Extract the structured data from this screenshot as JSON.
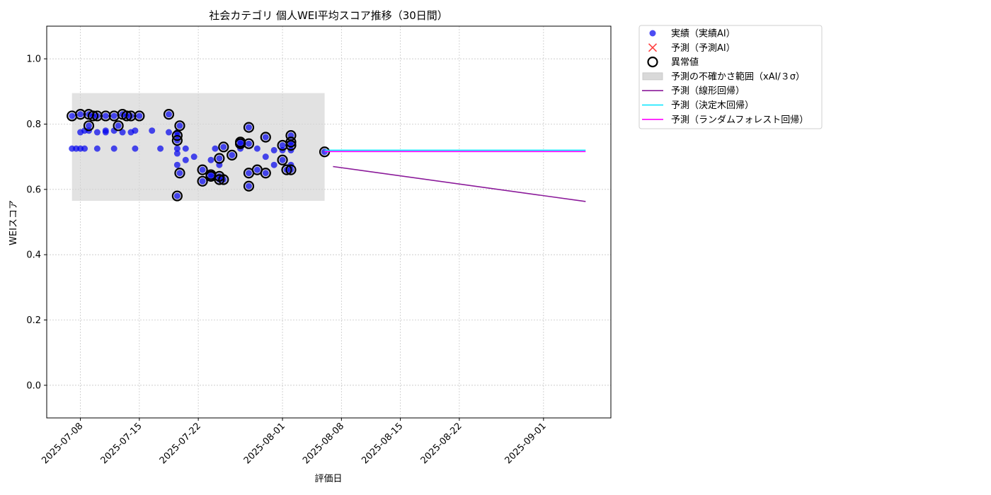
{
  "chart_data": {
    "type": "scatter",
    "title": "社会カテゴリ 個人WEI平均スコア推移（30日間）",
    "xlabel": "評価日",
    "ylabel": "WEIスコア",
    "ylim": [
      -0.1,
      1.1
    ],
    "xlim": [
      "2025-07-04",
      "2025-09-09"
    ],
    "y_ticks": [
      "0.0",
      "0.2",
      "0.4",
      "0.6",
      "0.8",
      "1.0"
    ],
    "x_ticks": [
      "2025-07-08",
      "2025-07-15",
      "2025-07-22",
      "2025-08-01",
      "2025-08-08",
      "2025-08-15",
      "2025-08-22",
      "2025-09-01"
    ],
    "grid": true,
    "legend_placement": "outside upper right",
    "legend": [
      {
        "label": "実績（実績AI）",
        "kind": "marker-dot",
        "color": "#0000ee"
      },
      {
        "label": "予測（予測AI）",
        "kind": "marker-x",
        "color": "#ff0000"
      },
      {
        "label": "異常値",
        "kind": "marker-ring",
        "color": "#000000"
      },
      {
        "label": "予測の不確かさ範囲（xAI/３σ）",
        "kind": "band",
        "color": "#d9d9d9"
      },
      {
        "label": "予測（線形回帰）",
        "kind": "line",
        "color": "#8b1a9a"
      },
      {
        "label": "予測（決定木回帰）",
        "kind": "line",
        "color": "#00e5ff"
      },
      {
        "label": "予測（ランダムフォレスト回帰）",
        "kind": "line",
        "color": "#ff00ff"
      }
    ],
    "uncertainty_band": {
      "x": [
        "2025-07-07",
        "2025-08-06"
      ],
      "y": [
        0.565,
        0.895
      ]
    },
    "actual_points": [
      {
        "x": "2025-07-07",
        "y": 0.825,
        "anomaly": true
      },
      {
        "x": "2025-07-07",
        "y": 0.725
      },
      {
        "x": "2025-07-07.5",
        "y": 0.725
      },
      {
        "x": "2025-07-08",
        "y": 0.83,
        "anomaly": true
      },
      {
        "x": "2025-07-08",
        "y": 0.725
      },
      {
        "x": "2025-07-08",
        "y": 0.775
      },
      {
        "x": "2025-07-08.5",
        "y": 0.725
      },
      {
        "x": "2025-07-08.5",
        "y": 0.78
      },
      {
        "x": "2025-07-09",
        "y": 0.83,
        "anomaly": true
      },
      {
        "x": "2025-07-09",
        "y": 0.78
      },
      {
        "x": "2025-07-09",
        "y": 0.795,
        "anomaly": true
      },
      {
        "x": "2025-07-09.5",
        "y": 0.825,
        "anomaly": true
      },
      {
        "x": "2025-07-10",
        "y": 0.825,
        "anomaly": true
      },
      {
        "x": "2025-07-10",
        "y": 0.775
      },
      {
        "x": "2025-07-10",
        "y": 0.725
      },
      {
        "x": "2025-07-11",
        "y": 0.775
      },
      {
        "x": "2025-07-11",
        "y": 0.78
      },
      {
        "x": "2025-07-11",
        "y": 0.825,
        "anomaly": true
      },
      {
        "x": "2025-07-12",
        "y": 0.78
      },
      {
        "x": "2025-07-12",
        "y": 0.725
      },
      {
        "x": "2025-07-12",
        "y": 0.825,
        "anomaly": true
      },
      {
        "x": "2025-07-12.5",
        "y": 0.795,
        "anomaly": true
      },
      {
        "x": "2025-07-13",
        "y": 0.83,
        "anomaly": true
      },
      {
        "x": "2025-07-13",
        "y": 0.775
      },
      {
        "x": "2025-07-13.5",
        "y": 0.825,
        "anomaly": true
      },
      {
        "x": "2025-07-14",
        "y": 0.775
      },
      {
        "x": "2025-07-14",
        "y": 0.825,
        "anomaly": true
      },
      {
        "x": "2025-07-14.5",
        "y": 0.78
      },
      {
        "x": "2025-07-14.5",
        "y": 0.725
      },
      {
        "x": "2025-07-15",
        "y": 0.825,
        "anomaly": true
      },
      {
        "x": "2025-07-16.5",
        "y": 0.78
      },
      {
        "x": "2025-07-17.5",
        "y": 0.725
      },
      {
        "x": "2025-07-18.5",
        "y": 0.83,
        "anomaly": true
      },
      {
        "x": "2025-07-18.5",
        "y": 0.775
      },
      {
        "x": "2025-07-19.5",
        "y": 0.775
      },
      {
        "x": "2025-07-19.5",
        "y": 0.765,
        "anomaly": true
      },
      {
        "x": "2025-07-19.5",
        "y": 0.75,
        "anomaly": true
      },
      {
        "x": "2025-07-19.5",
        "y": 0.725
      },
      {
        "x": "2025-07-19.5",
        "y": 0.71
      },
      {
        "x": "2025-07-19.5",
        "y": 0.675
      },
      {
        "x": "2025-07-19.5",
        "y": 0.58,
        "anomaly": true
      },
      {
        "x": "2025-07-19.8",
        "y": 0.795,
        "anomaly": true
      },
      {
        "x": "2025-07-19.8",
        "y": 0.65,
        "anomaly": true
      },
      {
        "x": "2025-07-20.5",
        "y": 0.725
      },
      {
        "x": "2025-07-20.5",
        "y": 0.69
      },
      {
        "x": "2025-07-21.5",
        "y": 0.7
      },
      {
        "x": "2025-07-22.5",
        "y": 0.66,
        "anomaly": true
      },
      {
        "x": "2025-07-22.5",
        "y": 0.625,
        "anomaly": true
      },
      {
        "x": "2025-07-23.5",
        "y": 0.69
      },
      {
        "x": "2025-07-23.5",
        "y": 0.645,
        "anomaly": true
      },
      {
        "x": "2025-07-23.5",
        "y": 0.64,
        "anomaly": true
      },
      {
        "x": "2025-07-24",
        "y": 0.725
      },
      {
        "x": "2025-07-24.5",
        "y": 0.695,
        "anomaly": true
      },
      {
        "x": "2025-07-24.5",
        "y": 0.675
      },
      {
        "x": "2025-07-24.5",
        "y": 0.64,
        "anomaly": true
      },
      {
        "x": "2025-07-24.5",
        "y": 0.63,
        "anomaly": true
      },
      {
        "x": "2025-07-25",
        "y": 0.73,
        "anomaly": true
      },
      {
        "x": "2025-07-25",
        "y": 0.63,
        "anomaly": true
      },
      {
        "x": "2025-07-26",
        "y": 0.705,
        "anomaly": true
      },
      {
        "x": "2025-07-27",
        "y": 0.745,
        "anomaly": true
      },
      {
        "x": "2025-07-27",
        "y": 0.725
      },
      {
        "x": "2025-07-27",
        "y": 0.74,
        "anomaly": true
      },
      {
        "x": "2025-07-28",
        "y": 0.79,
        "anomaly": true
      },
      {
        "x": "2025-07-28",
        "y": 0.74,
        "anomaly": true
      },
      {
        "x": "2025-07-28",
        "y": 0.65,
        "anomaly": true
      },
      {
        "x": "2025-07-28",
        "y": 0.61,
        "anomaly": true
      },
      {
        "x": "2025-07-29",
        "y": 0.725
      },
      {
        "x": "2025-07-29",
        "y": 0.66,
        "anomaly": true
      },
      {
        "x": "2025-07-30",
        "y": 0.76,
        "anomaly": true
      },
      {
        "x": "2025-07-30",
        "y": 0.7
      },
      {
        "x": "2025-07-30",
        "y": 0.65,
        "anomaly": true
      },
      {
        "x": "2025-07-31",
        "y": 0.72
      },
      {
        "x": "2025-07-31",
        "y": 0.675
      },
      {
        "x": "2025-08-01",
        "y": 0.735,
        "anomaly": true
      },
      {
        "x": "2025-08-01",
        "y": 0.72
      },
      {
        "x": "2025-08-01",
        "y": 0.69,
        "anomaly": true
      },
      {
        "x": "2025-08-01.5",
        "y": 0.66,
        "anomaly": true
      },
      {
        "x": "2025-08-02",
        "y": 0.765,
        "anomaly": true
      },
      {
        "x": "2025-08-02",
        "y": 0.745,
        "anomaly": true
      },
      {
        "x": "2025-08-02",
        "y": 0.735,
        "anomaly": true
      },
      {
        "x": "2025-08-02",
        "y": 0.72
      },
      {
        "x": "2025-08-02",
        "y": 0.675
      },
      {
        "x": "2025-08-02",
        "y": 0.66,
        "anomaly": true
      },
      {
        "x": "2025-08-06",
        "y": 0.715,
        "anomaly": true
      }
    ],
    "series": [
      {
        "name": "予測（線形回帰）",
        "color": "#8b1a9a",
        "x": [
          "2025-08-07",
          "2025-09-06"
        ],
        "y": [
          0.67,
          0.563
        ]
      },
      {
        "name": "予測（決定木回帰）",
        "color": "#00e5ff",
        "x": [
          "2025-08-06",
          "2025-09-06"
        ],
        "y": [
          0.72,
          0.72
        ]
      },
      {
        "name": "予測（ランダムフォレスト回帰）",
        "color": "#ff00ff",
        "x": [
          "2025-08-06",
          "2025-09-06"
        ],
        "y": [
          0.716,
          0.716
        ]
      }
    ]
  }
}
